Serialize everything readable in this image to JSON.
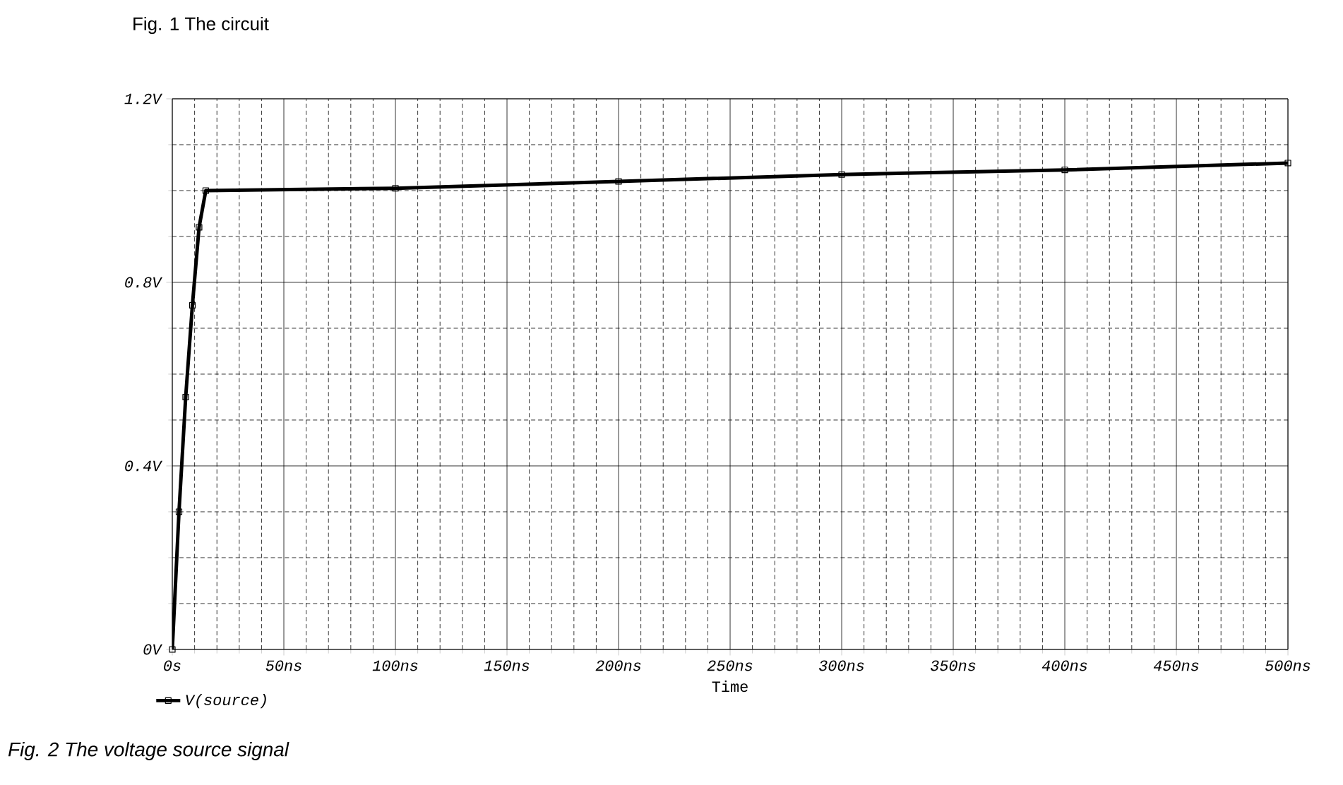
{
  "chart_data": {
    "type": "line",
    "title": "Fig. 1  The circuit",
    "xlabel": "Time",
    "annotations": [
      "*Fig. 2  The voltage source signal*"
    ],
    "x": [
      0,
      3,
      6,
      9,
      12,
      15,
      100,
      200,
      300,
      400,
      500
    ],
    "series": [
      {
        "name": "V(source)",
        "color": "#000000",
        "values": [
          0,
          0.3,
          0.55,
          0.75,
          0.92,
          1.0,
          1.005,
          1.02,
          1.035,
          1.045,
          1.06
        ]
      }
    ],
    "xlim": [
      0,
      500
    ],
    "xticks": [
      {
        "value": 0,
        "label": "0s"
      },
      {
        "value": 50,
        "label": "50ns"
      },
      {
        "value": 100,
        "label": "100ns"
      },
      {
        "value": 150,
        "label": "150ns"
      },
      {
        "value": 200,
        "label": "200ns"
      },
      {
        "value": 250,
        "label": "250ns"
      },
      {
        "value": 300,
        "label": "300ns"
      },
      {
        "value": 350,
        "label": "350ns"
      },
      {
        "value": 400,
        "label": "400ns"
      },
      {
        "value": 450,
        "label": "450ns"
      },
      {
        "value": 500,
        "label": "500ns"
      }
    ],
    "ylim": [
      0,
      1.2
    ],
    "yticks": [
      {
        "value": 0,
        "label": "0V"
      },
      {
        "value": 0.4,
        "label": "0.4V"
      },
      {
        "value": 0.8,
        "label": "0.8V"
      },
      {
        "value": 1.2,
        "label": "1.2V"
      }
    ],
    "grid": true,
    "legend": "bottom left",
    "marker": "square",
    "line_style": "solid"
  }
}
